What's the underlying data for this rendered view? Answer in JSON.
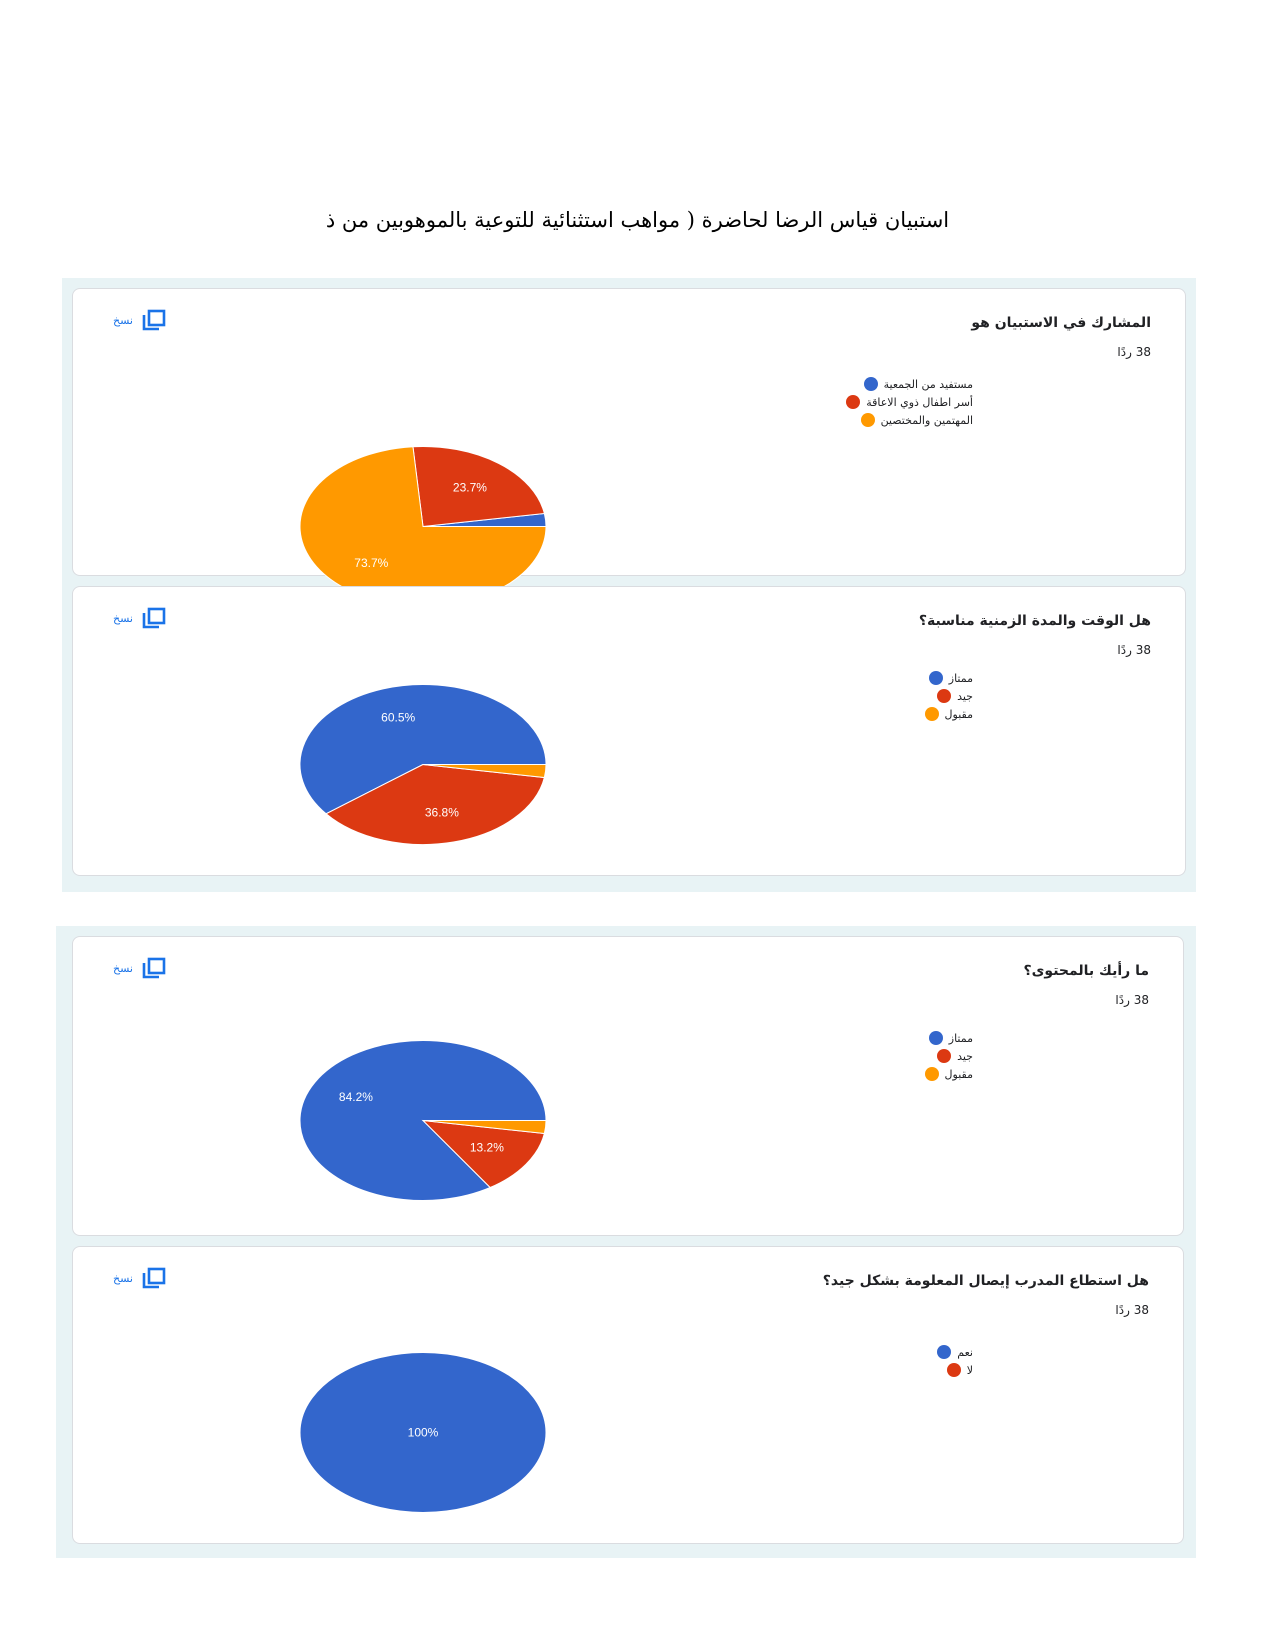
{
  "document": {
    "title": "استبيان قياس الرضا لحاضرة ( مواهب استثنائية للتوعية بالموهوبين من ذ"
  },
  "colors": {
    "blue": "#3366cc",
    "red": "#dc3912",
    "orange": "#ff9900",
    "panel_bg": "#e8f3f5",
    "link": "#1a73e8"
  },
  "cards": [
    {
      "question": "المشارك في الاستبيان هو",
      "responses": "38 ردًا",
      "copy_label": "نسخ",
      "copy_icon": "copy-icon",
      "legend": [
        "مستفيد من الجمعية",
        "أسر اطفال ذوي الاعاقة",
        "المهتمين والمختصين"
      ]
    },
    {
      "question": "هل الوقت والمدة الزمنية مناسبة؟",
      "responses": "38 ردًا",
      "copy_label": "نسخ",
      "copy_icon": "copy-icon",
      "legend": [
        "ممتاز",
        "جيد",
        "مقبول"
      ]
    },
    {
      "question": "ما رأيك بالمحتوى؟",
      "responses": "38 ردًا",
      "copy_label": "نسخ",
      "copy_icon": "copy-icon",
      "legend": [
        "ممتاز",
        "جيد",
        "مقبول"
      ]
    },
    {
      "question": "هل استطاع المدرب إيصال المعلومة بشكل جيد؟",
      "responses": "38 ردًا",
      "copy_label": "نسخ",
      "copy_icon": "copy-icon",
      "legend": [
        "نعم",
        "لا"
      ]
    }
  ],
  "chart_data": [
    {
      "type": "pie",
      "title": "المشارك في الاستبيان هو",
      "categories": [
        "مستفيد من الجمعية",
        "أسر اطفال ذوي الاعاقة",
        "المهتمين والمختصين"
      ],
      "values": [
        2.6,
        23.7,
        73.7
      ],
      "colors": [
        "#3366cc",
        "#dc3912",
        "#ff9900"
      ],
      "data_labels": [
        "",
        "23.7%",
        "73.7%"
      ],
      "legend_position": "right"
    },
    {
      "type": "pie",
      "title": "هل الوقت والمدة الزمنية مناسبة؟",
      "categories": [
        "ممتاز",
        "جيد",
        "مقبول"
      ],
      "values": [
        60.5,
        36.8,
        2.6
      ],
      "colors": [
        "#3366cc",
        "#dc3912",
        "#ff9900"
      ],
      "data_labels": [
        "60.5%",
        "36.8%",
        ""
      ],
      "legend_position": "right"
    },
    {
      "type": "pie",
      "title": "ما رأيك بالمحتوى؟",
      "categories": [
        "ممتاز",
        "جيد",
        "مقبول"
      ],
      "values": [
        84.2,
        13.2,
        2.6
      ],
      "colors": [
        "#3366cc",
        "#dc3912",
        "#ff9900"
      ],
      "data_labels": [
        "84.2%",
        "13.2%",
        ""
      ],
      "legend_position": "right"
    },
    {
      "type": "pie",
      "title": "هل استطاع المدرب إيصال المعلومة بشكل جيد؟",
      "categories": [
        "نعم",
        "لا"
      ],
      "values": [
        100,
        0
      ],
      "colors": [
        "#3366cc",
        "#dc3912"
      ],
      "data_labels": [
        "100%",
        ""
      ],
      "legend_position": "right"
    }
  ]
}
